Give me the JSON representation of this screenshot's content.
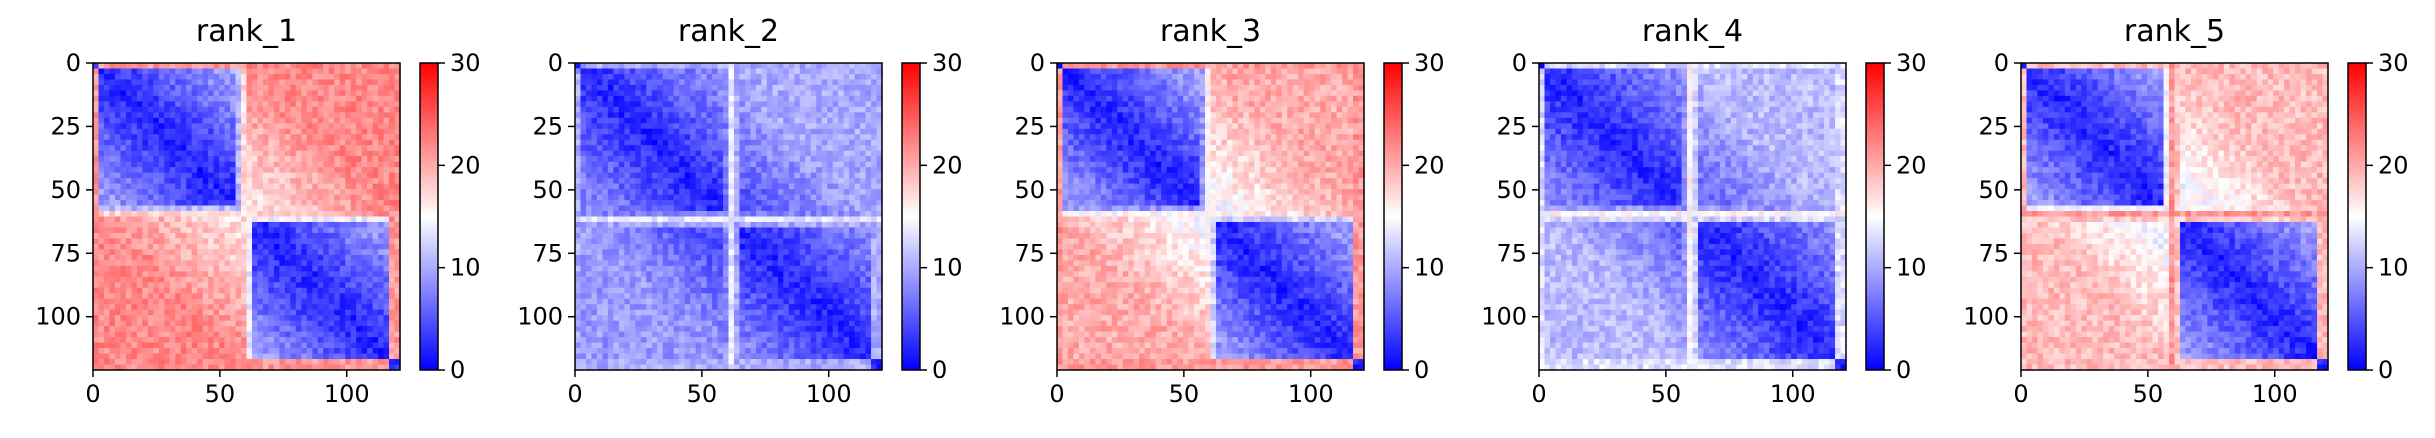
{
  "chart_data": [
    {
      "type": "heatmap",
      "title": "rank_1",
      "x_ticks": [
        0,
        50,
        100
      ],
      "y_ticks": [
        0,
        25,
        50,
        75,
        100
      ],
      "xlim": [
        0,
        121
      ],
      "ylim": [
        121,
        0
      ],
      "matrix_size": 121,
      "domain_boundary": 60,
      "colormap": "bwr",
      "colorbar": {
        "min": 0,
        "max": 30,
        "ticks": [
          0,
          10,
          20,
          30
        ]
      },
      "pattern": {
        "intra_domain_mean": 7,
        "offdiag_left_mean": 22,
        "offdiag_right_mean": 22,
        "stripe_value": 19,
        "border_value": 24
      }
    },
    {
      "type": "heatmap",
      "title": "rank_2",
      "x_ticks": [
        0,
        50,
        100
      ],
      "y_ticks": [
        0,
        25,
        50,
        75,
        100
      ],
      "xlim": [
        0,
        121
      ],
      "ylim": [
        121,
        0
      ],
      "matrix_size": 121,
      "domain_boundary": 62,
      "colormap": "bwr",
      "colorbar": {
        "min": 0,
        "max": 30,
        "ticks": [
          0,
          10,
          20,
          30
        ]
      },
      "pattern": {
        "intra_domain_mean": 6,
        "offdiag_left_mean": 9,
        "offdiag_right_mean": 10,
        "stripe_value": 15,
        "border_value": 13
      }
    },
    {
      "type": "heatmap",
      "title": "rank_3",
      "x_ticks": [
        0,
        50,
        100
      ],
      "y_ticks": [
        0,
        25,
        50,
        75,
        100
      ],
      "xlim": [
        0,
        121
      ],
      "ylim": [
        121,
        0
      ],
      "matrix_size": 121,
      "domain_boundary": 60,
      "colormap": "bwr",
      "colorbar": {
        "min": 0,
        "max": 30,
        "ticks": [
          0,
          10,
          20,
          30
        ]
      },
      "pattern": {
        "intra_domain_mean": 7,
        "offdiag_left_mean": 20,
        "offdiag_right_mean": 20,
        "stripe_value": 17,
        "border_value": 24
      }
    },
    {
      "type": "heatmap",
      "title": "rank_4",
      "x_ticks": [
        0,
        50,
        100
      ],
      "y_ticks": [
        0,
        25,
        50,
        75,
        100
      ],
      "xlim": [
        0,
        121
      ],
      "ylim": [
        121,
        0
      ],
      "matrix_size": 121,
      "domain_boundary": 60,
      "colormap": "bwr",
      "colorbar": {
        "min": 0,
        "max": 30,
        "ticks": [
          0,
          10,
          20,
          30
        ]
      },
      "pattern": {
        "intra_domain_mean": 6,
        "offdiag_left_mean": 11,
        "offdiag_right_mean": 11,
        "stripe_value": 17,
        "border_value": 16
      }
    },
    {
      "type": "heatmap",
      "title": "rank_5",
      "x_ticks": [
        0,
        50,
        100
      ],
      "y_ticks": [
        0,
        25,
        50,
        75,
        100
      ],
      "xlim": [
        0,
        121
      ],
      "ylim": [
        121,
        0
      ],
      "matrix_size": 121,
      "domain_boundary": 60,
      "colormap": "bwr",
      "colorbar": {
        "min": 0,
        "max": 30,
        "ticks": [
          0,
          10,
          20,
          30
        ]
      },
      "pattern": {
        "intra_domain_mean": 7,
        "offdiag_left_mean": 19,
        "offdiag_right_mean": 19,
        "stripe_value": 23,
        "border_value": 22
      }
    }
  ]
}
